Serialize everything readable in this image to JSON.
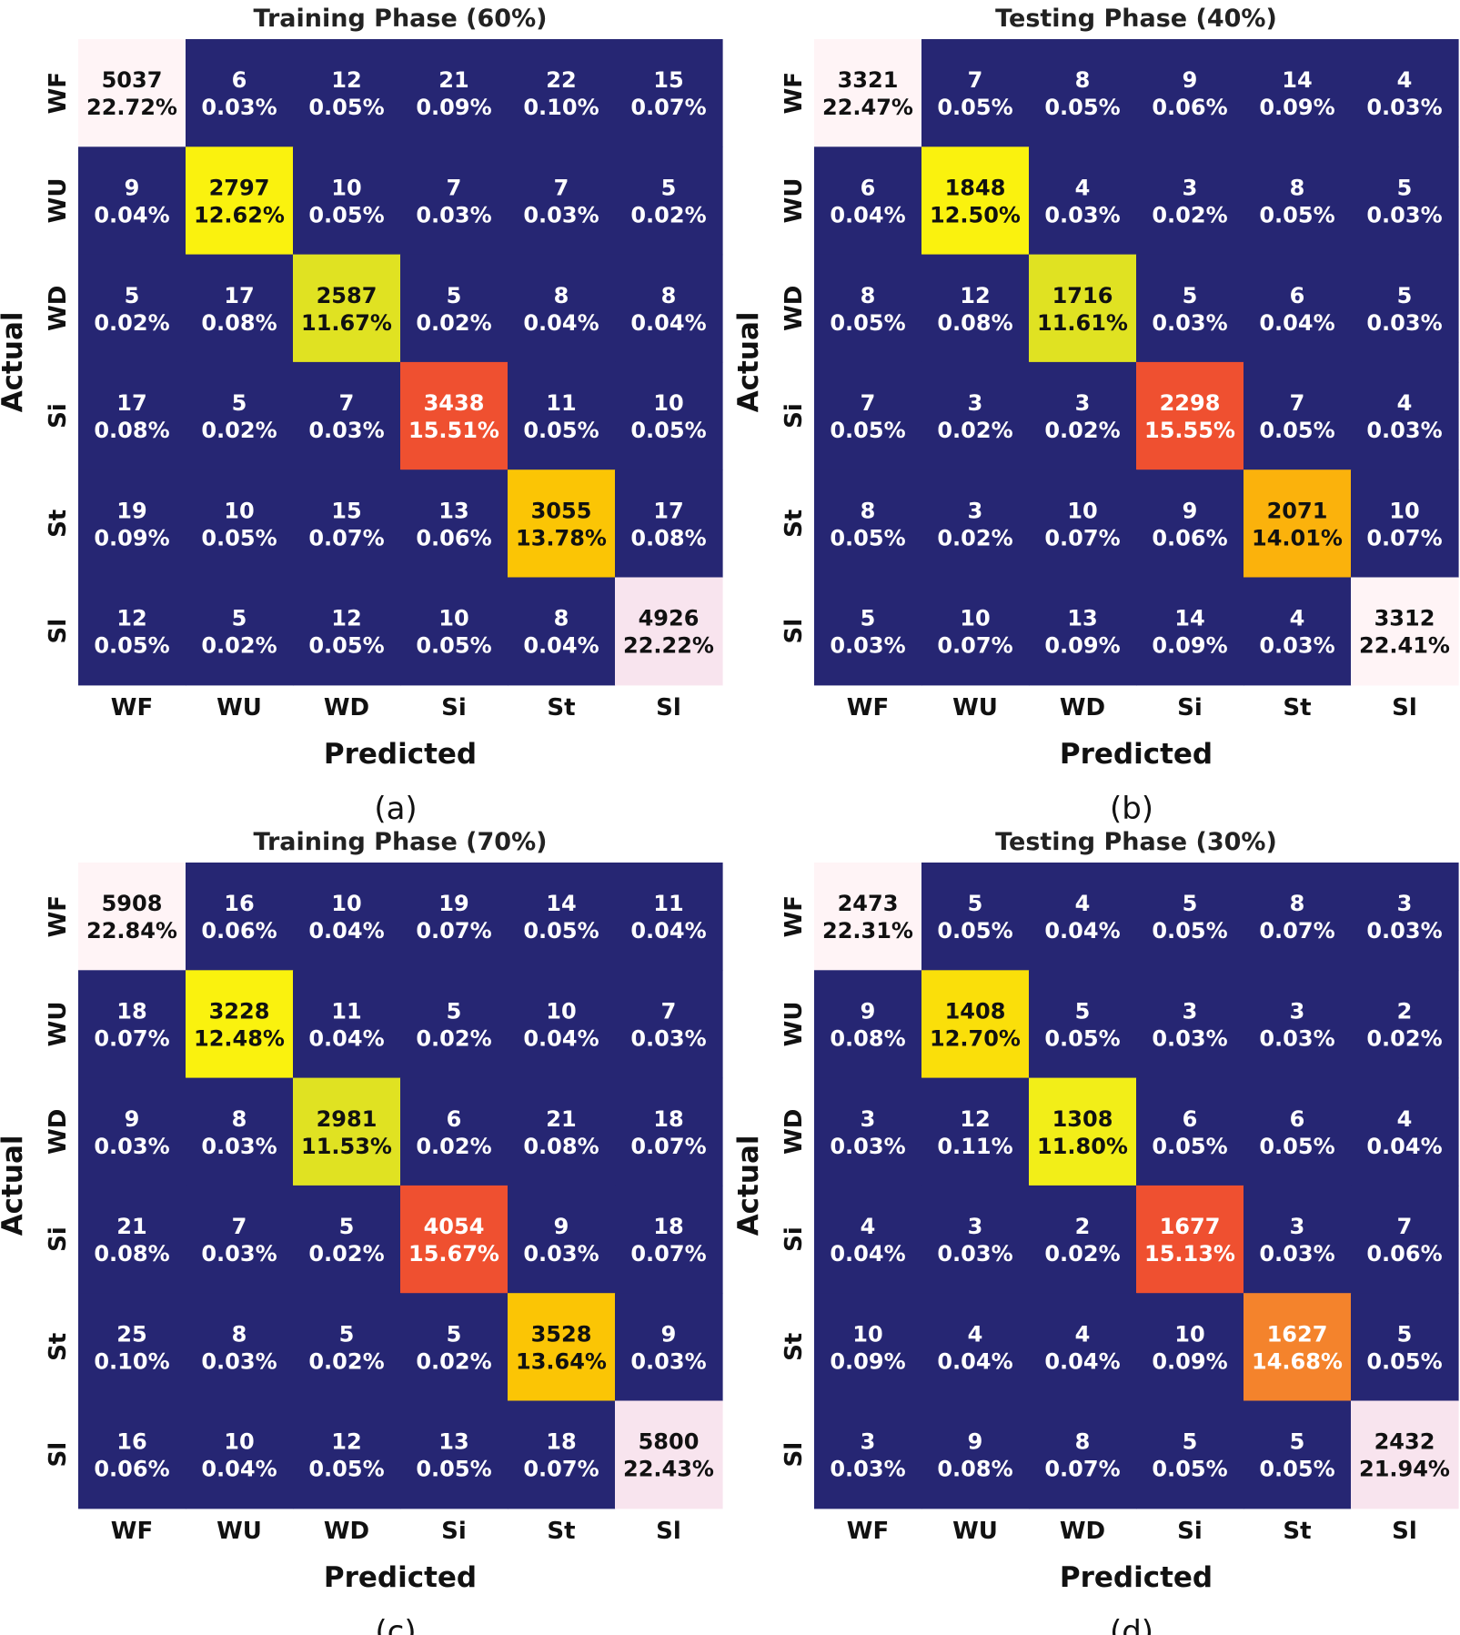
{
  "colors": {
    "background": "#262673",
    "yellow_high": "#faf20e",
    "yellow_mid": "#e0e222",
    "orange": "#f4832c",
    "red_orange": "#ef5030",
    "amber": "#fbc505",
    "light_pink": "#fff4f6",
    "light_mauve": "#f8e4ee",
    "text_light": "#ffffff",
    "text_dark": "#111111"
  },
  "chart_data": [
    {
      "type": "heatmap",
      "caption": "(a)",
      "title": "Training Phase (60%)",
      "xlabel": "Predicted",
      "ylabel": "Actual",
      "x_labels": [
        "WF",
        "WU",
        "WD",
        "Si",
        "St",
        "Sl"
      ],
      "y_labels": [
        "WF",
        "WU",
        "WD",
        "Si",
        "St",
        "Sl"
      ],
      "counts": [
        [
          5037,
          6,
          12,
          21,
          22,
          15
        ],
        [
          9,
          2797,
          10,
          7,
          7,
          5
        ],
        [
          5,
          17,
          2587,
          5,
          8,
          8
        ],
        [
          17,
          5,
          7,
          3438,
          11,
          10
        ],
        [
          19,
          10,
          15,
          13,
          3055,
          17
        ],
        [
          12,
          5,
          12,
          10,
          8,
          4926
        ]
      ],
      "percents": [
        [
          "22.72%",
          "0.03%",
          "0.05%",
          "0.09%",
          "0.10%",
          "0.07%"
        ],
        [
          "0.04%",
          "12.62%",
          "0.05%",
          "0.03%",
          "0.03%",
          "0.02%"
        ],
        [
          "0.02%",
          "0.08%",
          "11.67%",
          "0.02%",
          "0.04%",
          "0.04%"
        ],
        [
          "0.08%",
          "0.02%",
          "0.03%",
          "15.51%",
          "0.05%",
          "0.05%"
        ],
        [
          "0.09%",
          "0.05%",
          "0.07%",
          "0.06%",
          "13.78%",
          "0.08%"
        ],
        [
          "0.05%",
          "0.02%",
          "0.05%",
          "0.05%",
          "0.04%",
          "22.22%"
        ]
      ],
      "diag_colors": [
        "#fff4f6",
        "#faf20e",
        "#e0e222",
        "#ef5030",
        "#fbc505",
        "#f8e4ee"
      ],
      "diag_text_light": [
        false,
        false,
        false,
        true,
        false,
        false
      ]
    },
    {
      "type": "heatmap",
      "caption": "(b)",
      "title": "Testing Phase (40%)",
      "xlabel": "Predicted",
      "ylabel": "Actual",
      "x_labels": [
        "WF",
        "WU",
        "WD",
        "Si",
        "St",
        "Sl"
      ],
      "y_labels": [
        "WF",
        "WU",
        "WD",
        "Si",
        "St",
        "Sl"
      ],
      "counts": [
        [
          3321,
          7,
          8,
          9,
          14,
          4
        ],
        [
          6,
          1848,
          4,
          3,
          8,
          5
        ],
        [
          8,
          12,
          1716,
          5,
          6,
          5
        ],
        [
          7,
          3,
          3,
          2298,
          7,
          4
        ],
        [
          8,
          3,
          10,
          9,
          2071,
          10
        ],
        [
          5,
          10,
          13,
          14,
          4,
          3312
        ]
      ],
      "percents": [
        [
          "22.47%",
          "0.05%",
          "0.05%",
          "0.06%",
          "0.09%",
          "0.03%"
        ],
        [
          "0.04%",
          "12.50%",
          "0.03%",
          "0.02%",
          "0.05%",
          "0.03%"
        ],
        [
          "0.05%",
          "0.08%",
          "11.61%",
          "0.03%",
          "0.04%",
          "0.03%"
        ],
        [
          "0.05%",
          "0.02%",
          "0.02%",
          "15.55%",
          "0.05%",
          "0.03%"
        ],
        [
          "0.05%",
          "0.02%",
          "0.07%",
          "0.06%",
          "14.01%",
          "0.07%"
        ],
        [
          "0.03%",
          "0.07%",
          "0.09%",
          "0.09%",
          "0.03%",
          "22.41%"
        ]
      ],
      "diag_colors": [
        "#fff4f6",
        "#faf20e",
        "#e0e222",
        "#ef5030",
        "#fbb20c",
        "#fff4f6"
      ],
      "diag_text_light": [
        false,
        false,
        false,
        true,
        false,
        false
      ]
    },
    {
      "type": "heatmap",
      "caption": "(c)",
      "title": "Training Phase (70%)",
      "xlabel": "Predicted",
      "ylabel": "Actual",
      "x_labels": [
        "WF",
        "WU",
        "WD",
        "Si",
        "St",
        "Sl"
      ],
      "y_labels": [
        "WF",
        "WU",
        "WD",
        "Si",
        "St",
        "Sl"
      ],
      "counts": [
        [
          5908,
          16,
          10,
          19,
          14,
          11
        ],
        [
          18,
          3228,
          11,
          5,
          10,
          7
        ],
        [
          9,
          8,
          2981,
          6,
          21,
          18
        ],
        [
          21,
          7,
          5,
          4054,
          9,
          18
        ],
        [
          25,
          8,
          5,
          5,
          3528,
          9
        ],
        [
          16,
          10,
          12,
          13,
          18,
          5800
        ]
      ],
      "percents": [
        [
          "22.84%",
          "0.06%",
          "0.04%",
          "0.07%",
          "0.05%",
          "0.04%"
        ],
        [
          "0.07%",
          "12.48%",
          "0.04%",
          "0.02%",
          "0.04%",
          "0.03%"
        ],
        [
          "0.03%",
          "0.03%",
          "11.53%",
          "0.02%",
          "0.08%",
          "0.07%"
        ],
        [
          "0.08%",
          "0.03%",
          "0.02%",
          "15.67%",
          "0.03%",
          "0.07%"
        ],
        [
          "0.10%",
          "0.03%",
          "0.02%",
          "0.02%",
          "13.64%",
          "0.03%"
        ],
        [
          "0.06%",
          "0.04%",
          "0.05%",
          "0.05%",
          "0.07%",
          "22.43%"
        ]
      ],
      "diag_colors": [
        "#fff4f6",
        "#faf20e",
        "#e0e222",
        "#ef5030",
        "#fbc505",
        "#f8e4ee"
      ],
      "diag_text_light": [
        false,
        false,
        false,
        true,
        false,
        false
      ]
    },
    {
      "type": "heatmap",
      "caption": "(d)",
      "title": "Testing Phase (30%)",
      "xlabel": "Predicted",
      "ylabel": "Actual",
      "x_labels": [
        "WF",
        "WU",
        "WD",
        "Si",
        "St",
        "Sl"
      ],
      "y_labels": [
        "WF",
        "WU",
        "WD",
        "Si",
        "St",
        "Sl"
      ],
      "counts": [
        [
          2473,
          5,
          4,
          5,
          8,
          3
        ],
        [
          9,
          1408,
          5,
          3,
          3,
          2
        ],
        [
          3,
          12,
          1308,
          6,
          6,
          4
        ],
        [
          4,
          3,
          2,
          1677,
          3,
          7
        ],
        [
          10,
          4,
          4,
          10,
          1627,
          5
        ],
        [
          3,
          9,
          8,
          5,
          5,
          2432
        ]
      ],
      "percents": [
        [
          "22.31%",
          "0.05%",
          "0.04%",
          "0.05%",
          "0.07%",
          "0.03%"
        ],
        [
          "0.08%",
          "12.70%",
          "0.05%",
          "0.03%",
          "0.03%",
          "0.02%"
        ],
        [
          "0.03%",
          "0.11%",
          "11.80%",
          "0.05%",
          "0.05%",
          "0.04%"
        ],
        [
          "0.04%",
          "0.03%",
          "0.02%",
          "15.13%",
          "0.03%",
          "0.06%"
        ],
        [
          "0.09%",
          "0.04%",
          "0.04%",
          "0.09%",
          "14.68%",
          "0.05%"
        ],
        [
          "0.03%",
          "0.08%",
          "0.07%",
          "0.05%",
          "0.05%",
          "21.94%"
        ]
      ],
      "diag_colors": [
        "#fff4f6",
        "#fadf0a",
        "#f2ee18",
        "#ef5030",
        "#f4832c",
        "#f8e4ee"
      ],
      "diag_text_light": [
        false,
        false,
        false,
        true,
        true,
        false
      ]
    }
  ]
}
